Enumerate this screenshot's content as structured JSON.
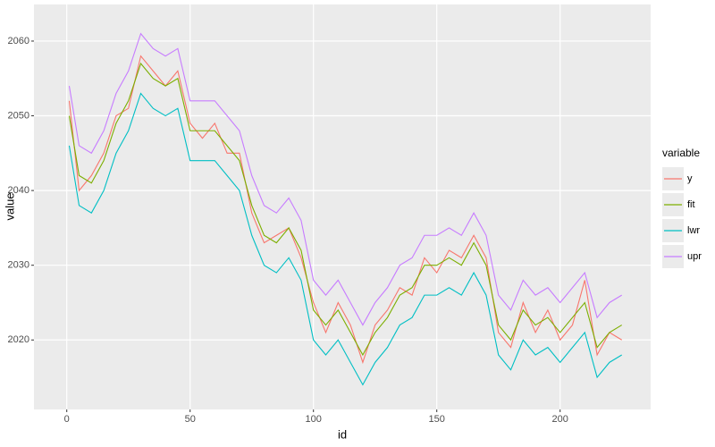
{
  "chart_data": {
    "type": "line",
    "x_label": "id",
    "y_label": "value",
    "legend_title": "variable",
    "xlim": [
      -13.3,
      236.7
    ],
    "ylim": [
      2010.7,
      2064.9
    ],
    "xticks": [
      0,
      50,
      100,
      150,
      200
    ],
    "yticks": [
      2020,
      2030,
      2040,
      2050,
      2060
    ],
    "grid": true,
    "legend": "right",
    "x": [
      1,
      5,
      10,
      15,
      20,
      25,
      30,
      35,
      40,
      45,
      50,
      55,
      60,
      65,
      70,
      75,
      80,
      85,
      90,
      95,
      100,
      105,
      110,
      115,
      120,
      125,
      130,
      135,
      140,
      145,
      150,
      155,
      160,
      165,
      170,
      175,
      180,
      185,
      190,
      195,
      200,
      205,
      210,
      215,
      220,
      225
    ],
    "series": [
      {
        "name": "y",
        "color": "#F8766D",
        "values": [
          2052,
          2040,
          2042,
          2045,
          2050,
          2051,
          2058,
          2056,
          2054,
          2056,
          2049,
          2047,
          2049,
          2045,
          2045,
          2037,
          2033,
          2034,
          2035,
          2031,
          2025,
          2021,
          2025,
          2022,
          2017,
          2022,
          2024,
          2027,
          2026,
          2031,
          2029,
          2032,
          2031,
          2034,
          2031,
          2021,
          2019,
          2025,
          2021,
          2024,
          2020,
          2022,
          2028,
          2018,
          2021,
          2020
        ]
      },
      {
        "name": "fit",
        "color": "#7CAE00",
        "values": [
          2050,
          2042,
          2041,
          2044,
          2049,
          2052,
          2057,
          2055,
          2054,
          2055,
          2048,
          2048,
          2048,
          2046,
          2044,
          2038,
          2034,
          2033,
          2035,
          2032,
          2024,
          2022,
          2024,
          2021,
          2018,
          2021,
          2023,
          2026,
          2027,
          2030,
          2030,
          2031,
          2030,
          2033,
          2030,
          2022,
          2020,
          2024,
          2022,
          2023,
          2021,
          2023,
          2025,
          2019,
          2021,
          2022
        ]
      },
      {
        "name": "lwr",
        "color": "#00BFC4",
        "values": [
          2046,
          2038,
          2037,
          2040,
          2045,
          2048,
          2053,
          2051,
          2050,
          2051,
          2044,
          2044,
          2044,
          2042,
          2040,
          2034,
          2030,
          2029,
          2031,
          2028,
          2020,
          2018,
          2020,
          2017,
          2014,
          2017,
          2019,
          2022,
          2023,
          2026,
          2026,
          2027,
          2026,
          2029,
          2026,
          2018,
          2016,
          2020,
          2018,
          2019,
          2017,
          2019,
          2021,
          2015,
          2017,
          2018
        ]
      },
      {
        "name": "upr",
        "color": "#C77CFF",
        "values": [
          2054,
          2046,
          2045,
          2048,
          2053,
          2056,
          2061,
          2059,
          2058,
          2059,
          2052,
          2052,
          2052,
          2050,
          2048,
          2042,
          2038,
          2037,
          2039,
          2036,
          2028,
          2026,
          2028,
          2025,
          2022,
          2025,
          2027,
          2030,
          2031,
          2034,
          2034,
          2035,
          2034,
          2037,
          2034,
          2026,
          2024,
          2028,
          2026,
          2027,
          2025,
          2027,
          2029,
          2023,
          2025,
          2026
        ]
      }
    ]
  }
}
